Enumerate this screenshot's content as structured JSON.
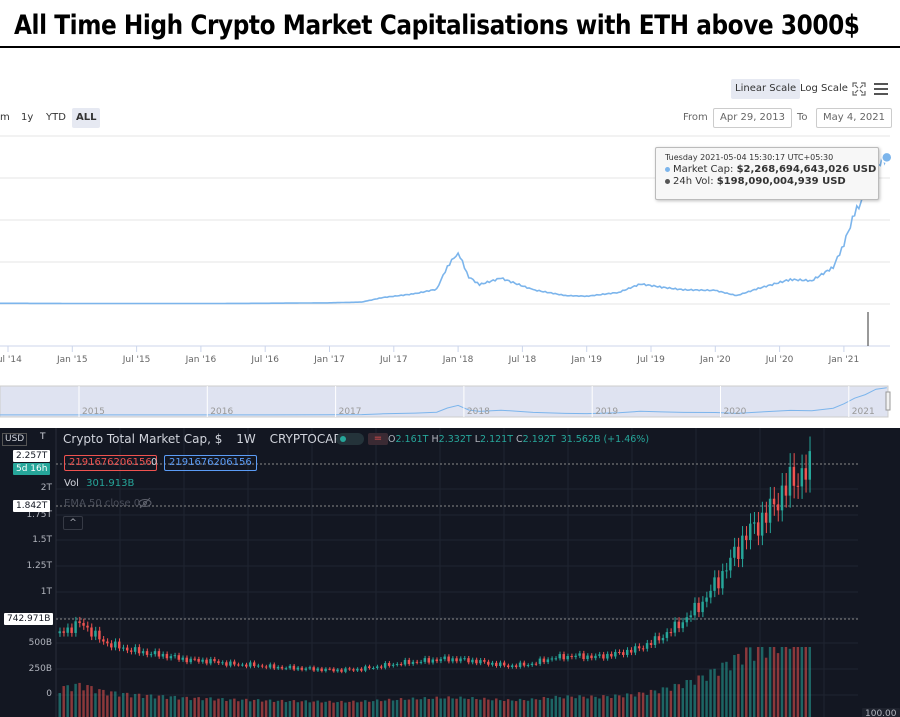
{
  "banner": {
    "title": "All Time High Crypto Market Capitalisations with ETH above 3000$"
  },
  "top_chart": {
    "scale_buttons": {
      "linear": "Linear Scale",
      "log": "Log Scale"
    },
    "zoom_buttons": [
      "m",
      "1y",
      "YTD",
      "ALL"
    ],
    "from_label": "From",
    "from_value": "Apr 29, 2013",
    "to_label": "To",
    "to_value": "May 4, 2021",
    "tooltip": {
      "date": "Tuesday 2021-05-04 15:30:17 UTC+05:30",
      "market_cap_label": "Market Cap:",
      "market_cap_value": "$2,268,694,643,026 USD",
      "vol_label": "24h Vol:",
      "vol_value": "$198,090,004,939 USD"
    },
    "x_ticks": [
      "Jul '14",
      "Jan '15",
      "Jul '15",
      "Jan '16",
      "Jul '16",
      "Jan '17",
      "Jul '17",
      "Jan '18",
      "Jul '18",
      "Jan '19",
      "Jul '19",
      "Jan '20",
      "Jul '20",
      "Jan '21"
    ],
    "navigator_ticks": [
      "2015",
      "2016",
      "2017",
      "2018",
      "2019",
      "2020",
      "2021"
    ],
    "colors": {
      "line": "#7cb5ec",
      "navigator_fill": "#dfe3f1",
      "active_btn": "#e6e9f2"
    }
  },
  "bottom_chart": {
    "currency": "USD",
    "title": "Crypto Total Market Cap, $",
    "interval": "1W",
    "source": "CRYPTOCAP",
    "ohlc": {
      "o_label": "O",
      "o": "2.161T",
      "h_label": "H",
      "h": "2.332T",
      "l_label": "L",
      "l": "2.121T",
      "c_label": "C",
      "c": "2.192T",
      "change": "31.562B (+1.46%)"
    },
    "order_red": "2191676206156",
    "order_zero": "0",
    "order_blue": "2191676206156",
    "vol_label": "Vol",
    "vol_value": "301.913B",
    "ema_label": "EMA 50 close 0",
    "y_labels": [
      "2T",
      "1.75T",
      "1.5T",
      "1.25T",
      "1T",
      "500B",
      "250B",
      "0"
    ],
    "badges": {
      "top_cut": "T",
      "price": "2.257T",
      "countdown": "5d 16h",
      "line1": "1.842T",
      "line2": "742.971B",
      "vol_axis": "100.00"
    },
    "colors": {
      "bg": "#131722",
      "up": "#26a69a",
      "down": "#ef5350",
      "text": "#b2b5be"
    }
  },
  "chart_data": [
    {
      "type": "line",
      "title": "",
      "series": [
        {
          "name": "Market Cap",
          "x": [
            "2014-05",
            "2014-09",
            "2015-01",
            "2015-07",
            "2016-01",
            "2016-07",
            "2017-01",
            "2017-04",
            "2017-06",
            "2017-09",
            "2017-11",
            "2017-12",
            "2018-01",
            "2018-02",
            "2018-03",
            "2018-05",
            "2018-08",
            "2018-11",
            "2019-01",
            "2019-04",
            "2019-06",
            "2019-08",
            "2019-10",
            "2020-01",
            "2020-03",
            "2020-05",
            "2020-08",
            "2020-10",
            "2020-12",
            "2021-01",
            "2021-02",
            "2021-03",
            "2021-04",
            "2021-05"
          ],
          "values": [
            0.012,
            0.01,
            0.008,
            0.008,
            0.007,
            0.011,
            0.018,
            0.03,
            0.1,
            0.16,
            0.23,
            0.58,
            0.8,
            0.42,
            0.3,
            0.4,
            0.22,
            0.13,
            0.12,
            0.18,
            0.31,
            0.26,
            0.22,
            0.21,
            0.13,
            0.24,
            0.38,
            0.36,
            0.57,
            0.93,
            1.4,
            1.7,
            2.15,
            2.27
          ]
        }
      ],
      "yunit": "trillion USD",
      "grid": true
    },
    {
      "type": "bar",
      "title": "Crypto Total Market Cap, $",
      "series": [
        {
          "name": "",
          "values": [
            0.6,
            0.7,
            0.52,
            0.45,
            0.41,
            0.38,
            0.34,
            0.33,
            0.3,
            0.29,
            0.27,
            0.26,
            0.25,
            0.24,
            0.25,
            0.28,
            0.31,
            0.33,
            0.35,
            0.34,
            0.31,
            0.28,
            0.3,
            0.36,
            0.38,
            0.37,
            0.4,
            0.45,
            0.55,
            0.7,
            0.9,
            1.2,
            1.55,
            1.75,
            2.05,
            2.19
          ]
        }
      ],
      "ohlc_last": {
        "open": "2.161T",
        "high": "2.332T",
        "low": "2.121T",
        "close": "2.192T"
      },
      "volume_last": "301.913B",
      "y_ticks": [
        "0",
        "250B",
        "500B",
        "1T",
        "1.25T",
        "1.5T",
        "1.75T",
        "2T"
      ],
      "ylim": [
        0,
        2.25
      ]
    }
  ]
}
